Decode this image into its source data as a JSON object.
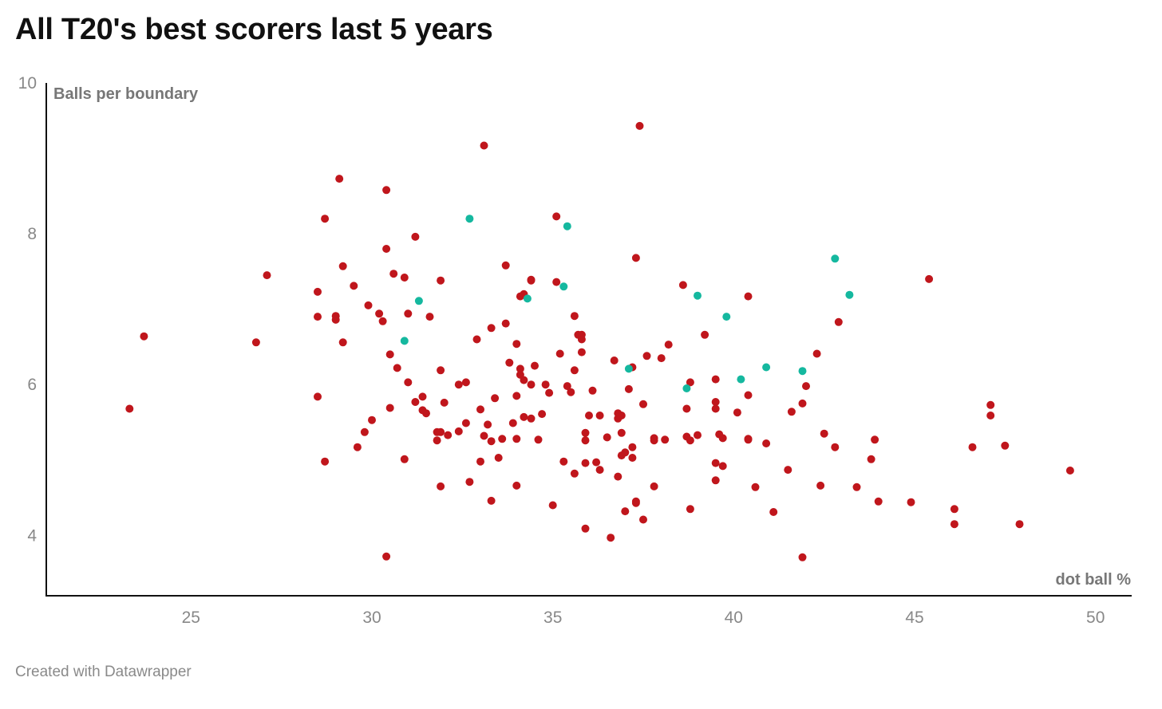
{
  "title": "All T20's best scorers last 5 years",
  "footer": "Created with Datawrapper",
  "colors": {
    "primary_series": "#c0161c",
    "highlight_series": "#15b89f",
    "axis": "#111111",
    "tick_text": "#888888",
    "axis_title_text": "#777777"
  },
  "chart_data": {
    "type": "scatter",
    "title": "All T20's best scorers last 5 years",
    "xlabel": "dot ball %",
    "ylabel": "Balls per boundary",
    "xlim": [
      21,
      51
    ],
    "ylim": [
      3.2,
      10
    ],
    "xticks": [
      25,
      30,
      35,
      40,
      45,
      50
    ],
    "yticks": [
      4,
      6,
      8,
      10
    ],
    "grid": false,
    "legend": "none",
    "series": [
      {
        "color": "#c0161c",
        "points": [
          [
            23.3,
            5.68
          ],
          [
            23.7,
            6.64
          ],
          [
            26.8,
            6.56
          ],
          [
            27.1,
            7.45
          ],
          [
            28.5,
            6.9
          ],
          [
            28.5,
            7.23
          ],
          [
            28.5,
            5.84
          ],
          [
            28.7,
            8.2
          ],
          [
            28.7,
            4.98
          ],
          [
            29.0,
            6.91
          ],
          [
            29.0,
            6.86
          ],
          [
            29.1,
            8.73
          ],
          [
            29.2,
            7.57
          ],
          [
            29.2,
            6.56
          ],
          [
            29.5,
            7.31
          ],
          [
            29.6,
            5.17
          ],
          [
            29.8,
            5.37
          ],
          [
            29.9,
            7.05
          ],
          [
            30.0,
            5.53
          ],
          [
            30.2,
            6.94
          ],
          [
            30.3,
            6.84
          ],
          [
            30.4,
            7.8
          ],
          [
            30.4,
            8.58
          ],
          [
            30.4,
            3.72
          ],
          [
            30.5,
            6.4
          ],
          [
            30.5,
            5.69
          ],
          [
            30.6,
            7.47
          ],
          [
            30.7,
            6.22
          ],
          [
            30.9,
            7.42
          ],
          [
            30.9,
            5.01
          ],
          [
            31.0,
            6.94
          ],
          [
            31.0,
            6.03
          ],
          [
            31.2,
            7.96
          ],
          [
            31.2,
            5.77
          ],
          [
            31.4,
            5.84
          ],
          [
            31.4,
            5.66
          ],
          [
            31.5,
            5.62
          ],
          [
            31.6,
            6.9
          ],
          [
            31.8,
            5.37
          ],
          [
            31.8,
            5.26
          ],
          [
            31.9,
            5.37
          ],
          [
            31.9,
            7.38
          ],
          [
            31.9,
            6.19
          ],
          [
            31.9,
            4.65
          ],
          [
            32.0,
            5.76
          ],
          [
            32.1,
            5.33
          ],
          [
            32.4,
            5.38
          ],
          [
            32.4,
            6.0
          ],
          [
            32.6,
            5.49
          ],
          [
            32.6,
            6.03
          ],
          [
            32.7,
            4.71
          ],
          [
            32.9,
            6.6
          ],
          [
            33.0,
            5.67
          ],
          [
            33.0,
            4.98
          ],
          [
            33.1,
            5.32
          ],
          [
            33.1,
            9.17
          ],
          [
            33.2,
            5.47
          ],
          [
            33.3,
            5.25
          ],
          [
            33.3,
            4.46
          ],
          [
            33.3,
            6.75
          ],
          [
            33.4,
            5.82
          ],
          [
            33.5,
            5.03
          ],
          [
            33.6,
            5.28
          ],
          [
            33.7,
            6.81
          ],
          [
            33.7,
            7.58
          ],
          [
            33.8,
            6.29
          ],
          [
            33.9,
            5.49
          ],
          [
            34.0,
            5.85
          ],
          [
            34.0,
            6.54
          ],
          [
            34.0,
            5.28
          ],
          [
            34.0,
            4.66
          ],
          [
            34.1,
            6.13
          ],
          [
            34.1,
            6.21
          ],
          [
            34.1,
            7.17
          ],
          [
            34.2,
            7.2
          ],
          [
            34.2,
            6.06
          ],
          [
            34.2,
            5.57
          ],
          [
            34.4,
            7.39
          ],
          [
            34.4,
            7.38
          ],
          [
            34.4,
            6.0
          ],
          [
            34.4,
            5.55
          ],
          [
            34.5,
            6.25
          ],
          [
            34.6,
            5.27
          ],
          [
            34.7,
            5.61
          ],
          [
            34.8,
            6.0
          ],
          [
            34.9,
            5.89
          ],
          [
            35.0,
            4.4
          ],
          [
            35.1,
            7.36
          ],
          [
            35.1,
            8.23
          ],
          [
            35.2,
            6.41
          ],
          [
            35.3,
            4.98
          ],
          [
            35.4,
            5.98
          ],
          [
            35.5,
            5.9
          ],
          [
            35.6,
            6.91
          ],
          [
            35.6,
            6.19
          ],
          [
            35.6,
            4.82
          ],
          [
            35.7,
            6.66
          ],
          [
            35.8,
            6.66
          ],
          [
            35.8,
            6.6
          ],
          [
            35.8,
            6.43
          ],
          [
            35.9,
            5.36
          ],
          [
            35.9,
            5.26
          ],
          [
            35.9,
            4.96
          ],
          [
            35.9,
            4.09
          ],
          [
            36.0,
            5.59
          ],
          [
            36.1,
            5.92
          ],
          [
            36.2,
            4.97
          ],
          [
            36.3,
            5.59
          ],
          [
            36.3,
            4.87
          ],
          [
            36.5,
            5.3
          ],
          [
            36.6,
            3.97
          ],
          [
            36.7,
            6.32
          ],
          [
            36.8,
            5.62
          ],
          [
            36.8,
            5.55
          ],
          [
            36.8,
            4.78
          ],
          [
            36.9,
            5.36
          ],
          [
            36.9,
            5.06
          ],
          [
            36.9,
            5.59
          ],
          [
            37.0,
            5.1
          ],
          [
            37.0,
            4.32
          ],
          [
            37.1,
            5.94
          ],
          [
            37.2,
            6.23
          ],
          [
            37.2,
            5.17
          ],
          [
            37.2,
            5.03
          ],
          [
            37.3,
            4.43
          ],
          [
            37.3,
            4.45
          ],
          [
            37.3,
            7.68
          ],
          [
            37.4,
            9.43
          ],
          [
            37.5,
            5.74
          ],
          [
            37.5,
            4.21
          ],
          [
            37.6,
            6.38
          ],
          [
            37.8,
            5.26
          ],
          [
            37.8,
            5.29
          ],
          [
            37.8,
            4.65
          ],
          [
            38.0,
            6.35
          ],
          [
            38.1,
            5.27
          ],
          [
            38.2,
            6.53
          ],
          [
            38.6,
            7.32
          ],
          [
            38.7,
            5.31
          ],
          [
            38.7,
            5.68
          ],
          [
            38.8,
            6.03
          ],
          [
            38.8,
            5.26
          ],
          [
            38.8,
            4.35
          ],
          [
            39.0,
            5.33
          ],
          [
            39.2,
            6.66
          ],
          [
            39.5,
            5.68
          ],
          [
            39.5,
            6.07
          ],
          [
            39.5,
            5.77
          ],
          [
            39.5,
            4.96
          ],
          [
            39.5,
            4.73
          ],
          [
            39.6,
            5.34
          ],
          [
            39.7,
            4.92
          ],
          [
            39.7,
            5.29
          ],
          [
            40.1,
            5.63
          ],
          [
            40.4,
            5.86
          ],
          [
            40.4,
            5.27
          ],
          [
            40.4,
            5.28
          ],
          [
            40.4,
            7.17
          ],
          [
            40.6,
            4.64
          ],
          [
            40.9,
            5.22
          ],
          [
            41.1,
            4.31
          ],
          [
            41.5,
            4.87
          ],
          [
            41.6,
            5.64
          ],
          [
            41.9,
            3.71
          ],
          [
            41.9,
            5.75
          ],
          [
            42.0,
            5.98
          ],
          [
            42.3,
            6.41
          ],
          [
            42.4,
            4.66
          ],
          [
            42.5,
            5.35
          ],
          [
            42.8,
            5.17
          ],
          [
            42.9,
            6.83
          ],
          [
            43.4,
            4.64
          ],
          [
            43.8,
            5.01
          ],
          [
            43.9,
            5.27
          ],
          [
            44.0,
            4.45
          ],
          [
            44.9,
            4.44
          ],
          [
            45.4,
            7.4
          ],
          [
            46.1,
            4.35
          ],
          [
            46.1,
            4.15
          ],
          [
            46.6,
            5.17
          ],
          [
            47.1,
            5.59
          ],
          [
            47.1,
            5.73
          ],
          [
            47.5,
            5.19
          ],
          [
            47.9,
            4.15
          ],
          [
            49.3,
            4.86
          ]
        ]
      },
      {
        "color": "#15b89f",
        "points": [
          [
            30.9,
            6.58
          ],
          [
            31.3,
            7.11
          ],
          [
            32.7,
            8.2
          ],
          [
            34.3,
            7.14
          ],
          [
            35.3,
            7.3
          ],
          [
            35.4,
            8.1
          ],
          [
            37.1,
            6.21
          ],
          [
            38.7,
            5.95
          ],
          [
            39.0,
            7.18
          ],
          [
            39.8,
            6.9
          ],
          [
            40.2,
            6.07
          ],
          [
            40.9,
            6.23
          ],
          [
            41.9,
            6.18
          ],
          [
            42.8,
            7.67
          ],
          [
            43.2,
            7.19
          ]
        ]
      }
    ]
  }
}
